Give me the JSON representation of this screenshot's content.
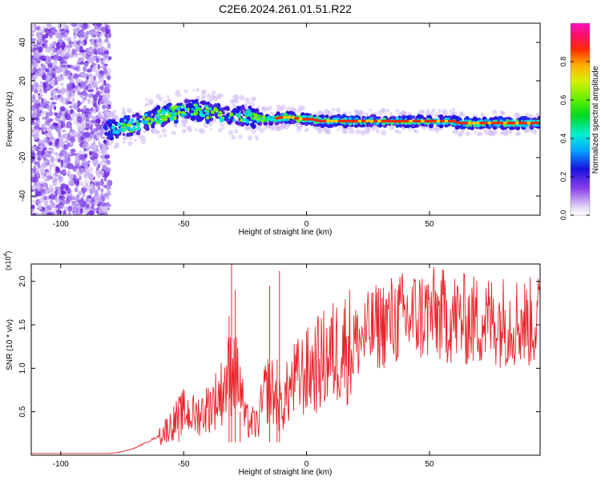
{
  "title": "C2E6.2024.261.01.51.R22",
  "chart_data": [
    {
      "type": "heatmap",
      "xlabel": "Height of straight line (km)",
      "ylabel": "Frequency (Hz)",
      "xlim": [
        -112,
        95
      ],
      "ylim": [
        -50,
        50
      ],
      "x_ticks": [
        -100,
        -50,
        0,
        50
      ],
      "x_tick_labels": [
        "-100",
        "-50",
        "0",
        "50"
      ],
      "y_ticks": [
        -40,
        -20,
        0,
        20,
        40
      ],
      "y_tick_labels": [
        "-40",
        "-20",
        "0",
        "20",
        "40"
      ],
      "colorbar": {
        "label": "Normalized spectral amplitude",
        "range": [
          0,
          1
        ],
        "ticks": [
          0.0,
          0.2,
          0.4,
          0.6,
          0.8
        ],
        "tick_labels": [
          "0.0",
          "0.2",
          "0.4",
          "0.6",
          "0.8"
        ]
      },
      "ridge": {
        "x": [
          -82,
          -76,
          -70,
          -64,
          -58,
          -52,
          -46,
          -42,
          -38,
          -34,
          -30,
          -26,
          -22,
          -18,
          -14,
          -10,
          -6,
          -2,
          2,
          6,
          10,
          20,
          30,
          40,
          50,
          60,
          62,
          70,
          80,
          95
        ],
        "y": [
          -7,
          -4,
          -3,
          0,
          2,
          4,
          5,
          4,
          3,
          2,
          1,
          2,
          1,
          0,
          0,
          1,
          1,
          0,
          0,
          -1,
          -1,
          -1,
          -1,
          -1,
          -1,
          -1,
          -2,
          -2,
          -2,
          -2
        ]
      }
    },
    {
      "type": "line",
      "xlabel": "Height of straight line (km)",
      "ylabel": "SNR (10 * v/v)",
      "y_multiplier": "(x10",
      "y_multiplier_exp": "4",
      "y_multiplier_close": ")",
      "xlim": [
        -112,
        95
      ],
      "ylim": [
        0,
        2.2
      ],
      "x_ticks": [
        -100,
        -50,
        0,
        50
      ],
      "x_tick_labels": [
        "-100",
        "-50",
        "0",
        "50"
      ],
      "y_ticks": [
        0.5,
        1.0,
        1.5,
        2.0
      ],
      "y_tick_labels": [
        "0.5",
        "1.0",
        "1.5",
        "2.0"
      ],
      "series": [
        {
          "name": "SNR",
          "color": "#e8242a",
          "x": [
            -112,
            -100,
            -90,
            -80,
            -75,
            -70,
            -65,
            -60,
            -55,
            -50,
            -45,
            -40,
            -35,
            -32,
            -30,
            -27,
            -25,
            -20,
            -17,
            -15,
            -12,
            -10,
            -8,
            -5,
            0,
            5,
            10,
            15,
            20,
            25,
            30,
            35,
            40,
            45,
            50,
            55,
            60,
            65,
            70,
            75,
            80,
            85,
            90,
            95
          ],
          "values": [
            0.02,
            0.02,
            0.02,
            0.02,
            0.04,
            0.08,
            0.15,
            0.22,
            0.35,
            0.5,
            0.45,
            0.55,
            0.7,
            0.9,
            1.0,
            0.8,
            0.4,
            0.35,
            0.7,
            0.8,
            0.6,
            0.55,
            0.7,
            0.85,
            0.95,
            1.05,
            1.15,
            1.25,
            1.3,
            1.4,
            1.5,
            1.55,
            1.58,
            1.6,
            1.62,
            1.6,
            1.58,
            1.55,
            1.55,
            1.55,
            1.55,
            1.55,
            1.52,
            1.55
          ]
        }
      ]
    }
  ]
}
